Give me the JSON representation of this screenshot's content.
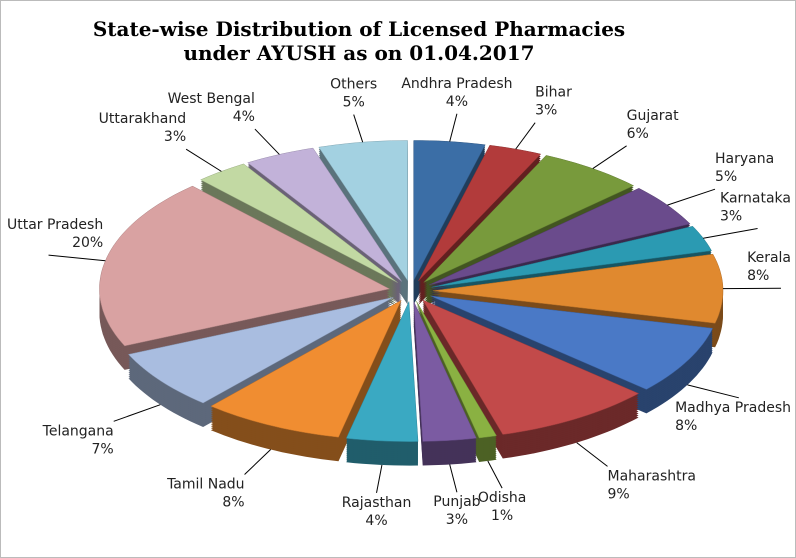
{
  "chart_data": {
    "type": "pie",
    "title": "State-wise Distribution of Licensed Pharmacies under AYUSH as on 01.04.2017",
    "categories": [
      "Andhra Pradesh",
      "Bihar",
      "Gujarat",
      "Haryana",
      "Karnataka",
      "Kerala",
      "Madhya Pradesh",
      "Maharashtra",
      "Odisha",
      "Punjab",
      "Rajasthan",
      "Tamil Nadu",
      "Telangana",
      "Uttar Pradesh",
      "Uttarakhand",
      "West Bengal",
      "Others"
    ],
    "values": [
      4,
      3,
      6,
      5,
      3,
      8,
      8,
      9,
      1,
      3,
      4,
      8,
      7,
      20,
      3,
      4,
      5
    ],
    "value_labels": [
      "4%",
      "3%",
      "6%",
      "5%",
      "3%",
      "8%",
      "8%",
      "9%",
      "1%",
      "3%",
      "4%",
      "8%",
      "7%",
      "20%",
      "3%",
      "4%",
      "5%"
    ],
    "colors": [
      "#3b6ea6",
      "#b23b3b",
      "#789a3c",
      "#6a4b8c",
      "#2b9ab2",
      "#e0892f",
      "#4a79c6",
      "#c24a4a",
      "#8ab142",
      "#7b5ba2",
      "#3aa9c2",
      "#f08d31",
      "#a9bde0",
      "#d9a2a2",
      "#c2d9a3",
      "#c2b2d9",
      "#a3d1e1"
    ]
  }
}
